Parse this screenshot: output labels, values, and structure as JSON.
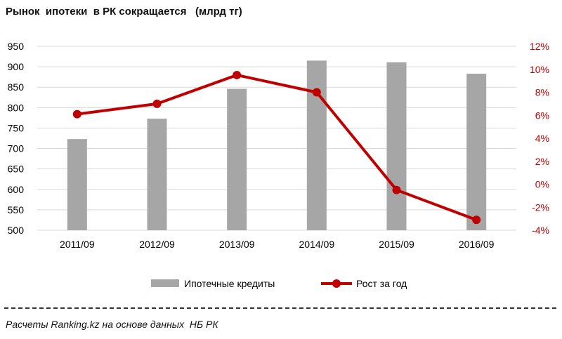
{
  "title": "Рынок  ипотеки  в РК сокращается   (млрд тг)",
  "source_note": "Расчеты Ranking.kz на основе данных  НБ РК",
  "colors": {
    "bar": "#a6a6a6",
    "line": "#c00000",
    "axis_text_left": "#000000",
    "axis_text_right": "#c00000",
    "grid": "#d9d9d9",
    "divider": "#333333"
  },
  "chart_data": {
    "type": "bar+line",
    "categories": [
      "2011/09",
      "2012/09",
      "2013/09",
      "2014/09",
      "2015/09",
      "2016/09"
    ],
    "series": [
      {
        "name": "Ипотечные кредиты",
        "type": "bar",
        "axis": "left",
        "values": [
          723,
          773,
          846,
          915,
          911,
          883
        ]
      },
      {
        "name": "Рост за год",
        "type": "line",
        "axis": "right",
        "values": [
          6.1,
          7.0,
          9.5,
          8.0,
          -0.5,
          -3.1
        ]
      }
    ],
    "y_left": {
      "lim": [
        500,
        950
      ],
      "ticks": [
        500,
        550,
        600,
        650,
        700,
        750,
        800,
        850,
        900,
        950
      ],
      "tick_labels": [
        "500",
        "550",
        "600",
        "650",
        "700",
        "750",
        "800",
        "850",
        "900",
        "950"
      ]
    },
    "y_right": {
      "lim": [
        -4,
        12
      ],
      "ticks": [
        -4,
        -2,
        0,
        2,
        4,
        6,
        8,
        10,
        12
      ],
      "tick_labels": [
        "-4%",
        "-2%",
        "0%",
        "2%",
        "4%",
        "6%",
        "8%",
        "10%",
        "12%"
      ]
    },
    "grid": "horizontal",
    "legend": {
      "position": "bottom",
      "entries": [
        "Ипотечные кредиты",
        "Рост за год"
      ]
    }
  }
}
